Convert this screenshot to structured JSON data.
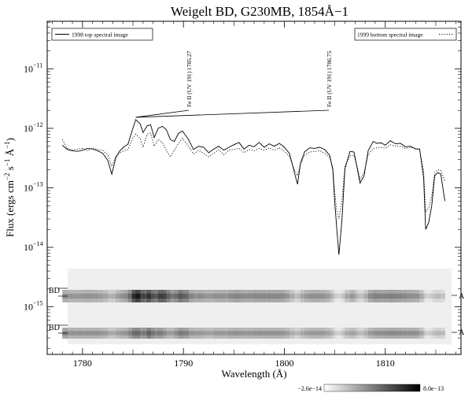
{
  "chart_data": {
    "type": "line",
    "title": "Weigelt BD, G230MB, 1854Å−1",
    "xlabel": "Wavelength (Å)",
    "ylabel_main": "Flux (ergs cm",
    "ylabel_exp1": "−2",
    "ylabel_s": " s",
    "ylabel_exp2": "−1",
    "ylabel_A": " Å",
    "ylabel_exp3": "−1",
    "ylabel_close": ")",
    "y_scale": "log",
    "xlim": [
      1776.5,
      1817.5
    ],
    "ylim_exp": [
      -15.8,
      -10.2
    ],
    "x_ticks": [
      1780,
      1790,
      1800,
      1810
    ],
    "y_ticks": [
      {
        "base": "10",
        "exp": "−11"
      },
      {
        "base": "10",
        "exp": "−12"
      },
      {
        "base": "10",
        "exp": "−13"
      },
      {
        "base": "10",
        "exp": "−14"
      },
      {
        "base": "10",
        "exp": "−15"
      }
    ],
    "y_tick_exponents": [
      -11,
      -12,
      -13,
      -14,
      -15
    ],
    "legend_left": "1998 top spectral image",
    "legend_right": "1999 bottom spectral image",
    "annotations": [
      {
        "text": "Fe II (UV 191) 1785.27",
        "x": 1785.27
      },
      {
        "text": "Fe II (UV 191) 1786.75",
        "x": 1786.75
      }
    ],
    "image_labels": {
      "left_top": "BD",
      "left_bottom": "BD",
      "right_top": "A",
      "right_bottom": "A"
    },
    "colorbar_min": "−2.6e−14",
    "colorbar_max": "8.0e−13",
    "series": [
      {
        "name": "1998 top spectral image",
        "style": "solid",
        "x": [
          1778.0,
          1778.5,
          1779.0,
          1779.5,
          1780.0,
          1780.5,
          1781.0,
          1781.5,
          1782.0,
          1782.5,
          1782.9,
          1783.3,
          1783.7,
          1784.1,
          1784.5,
          1784.9,
          1785.27,
          1785.7,
          1786.0,
          1786.4,
          1786.75,
          1787.1,
          1787.5,
          1787.9,
          1788.3,
          1788.7,
          1789.1,
          1789.5,
          1789.9,
          1790.5,
          1791.0,
          1791.5,
          1792.0,
          1792.5,
          1793.0,
          1793.5,
          1794.0,
          1794.5,
          1795.0,
          1795.5,
          1796.0,
          1796.5,
          1797.0,
          1797.5,
          1798.0,
          1798.5,
          1799.0,
          1799.5,
          1800.0,
          1800.5,
          1801.0,
          1801.3,
          1801.6,
          1802.0,
          1802.5,
          1803.0,
          1803.5,
          1804.0,
          1804.5,
          1804.8,
          1805.0,
          1805.2,
          1805.4,
          1805.7,
          1806.0,
          1806.5,
          1806.9,
          1807.2,
          1807.5,
          1807.9,
          1808.3,
          1808.8,
          1809.2,
          1809.6,
          1810.0,
          1810.5,
          1811.0,
          1811.5,
          1812.0,
          1812.5,
          1813.0,
          1813.4,
          1813.8,
          1814.0,
          1814.3,
          1814.6,
          1814.9,
          1815.2,
          1815.5,
          1815.9
        ],
        "y": [
          5.2e-13,
          4.4e-13,
          4.2e-13,
          4.1e-13,
          4.3e-13,
          4.6e-13,
          4.5e-13,
          4.2e-13,
          3.8e-13,
          2.9e-13,
          1.7e-13,
          3.2e-13,
          4.2e-13,
          4.9e-13,
          5.4e-13,
          9e-13,
          1.4e-12,
          1.2e-12,
          8.5e-13,
          1.1e-12,
          1.15e-12,
          7e-13,
          1e-12,
          1.08e-12,
          9.5e-13,
          6.5e-13,
          6e-13,
          8.2e-13,
          9e-13,
          6.5e-13,
          4.4e-13,
          5e-13,
          4.8e-13,
          3.9e-13,
          4.5e-13,
          5e-13,
          4.3e-13,
          4.8e-13,
          5.3e-13,
          5.8e-13,
          4.5e-13,
          5.2e-13,
          4.9e-13,
          5.8e-13,
          4.8e-13,
          5.5e-13,
          5e-13,
          5.6e-13,
          4.8e-13,
          3.8e-13,
          1.8e-13,
          1.15e-13,
          2.6e-13,
          4e-13,
          4.7e-13,
          4.6e-13,
          4.8e-13,
          4.4e-13,
          3.5e-13,
          2e-13,
          5.5e-14,
          2e-14,
          7.5e-15,
          2.8e-14,
          2.1e-13,
          4.1e-13,
          4e-13,
          2.2e-13,
          1.2e-13,
          1.6e-13,
          4.2e-13,
          6e-13,
          5.6e-13,
          5.7e-13,
          5.2e-13,
          6.2e-13,
          5.5e-13,
          5.6e-13,
          4.9e-13,
          5e-13,
          4.5e-13,
          4.5e-13,
          1.5e-13,
          2e-14,
          2.6e-14,
          5e-14,
          1.6e-13,
          1.8e-13,
          1.7e-13,
          6e-14
        ]
      },
      {
        "name": "1999 bottom spectral image",
        "style": "dotted",
        "x": [
          1778.0,
          1778.5,
          1779.0,
          1779.5,
          1780.0,
          1780.5,
          1781.0,
          1781.5,
          1782.0,
          1782.5,
          1782.9,
          1783.3,
          1783.7,
          1784.1,
          1784.5,
          1784.9,
          1785.27,
          1785.7,
          1786.0,
          1786.4,
          1786.75,
          1787.1,
          1787.5,
          1787.9,
          1788.3,
          1788.7,
          1789.1,
          1789.5,
          1789.9,
          1790.5,
          1791.0,
          1791.5,
          1792.0,
          1792.5,
          1793.0,
          1793.5,
          1794.0,
          1794.5,
          1795.0,
          1795.5,
          1796.0,
          1796.5,
          1797.0,
          1797.5,
          1798.0,
          1798.5,
          1799.0,
          1799.5,
          1800.0,
          1800.5,
          1801.0,
          1801.3,
          1801.6,
          1802.0,
          1802.5,
          1803.0,
          1803.5,
          1804.0,
          1804.5,
          1804.8,
          1805.0,
          1805.2,
          1805.4,
          1805.7,
          1806.0,
          1806.5,
          1806.9,
          1807.2,
          1807.5,
          1807.9,
          1808.3,
          1808.8,
          1809.2,
          1809.6,
          1810.0,
          1810.5,
          1811.0,
          1811.5,
          1812.0,
          1812.5,
          1813.0,
          1813.4,
          1813.8,
          1814.0,
          1814.3,
          1814.6,
          1814.9,
          1815.2,
          1815.5,
          1815.9
        ],
        "y": [
          6.5e-13,
          4.6e-13,
          4.3e-13,
          4.5e-13,
          4.6e-13,
          4.2e-13,
          4.7e-13,
          4.4e-13,
          4.3e-13,
          3.6e-13,
          2.3e-13,
          3.4e-13,
          3.9e-13,
          4.2e-13,
          4.4e-13,
          6.5e-13,
          8e-13,
          6.8e-13,
          4.8e-13,
          8e-13,
          8.3e-13,
          5e-13,
          6.5e-13,
          5.8e-13,
          4.3e-13,
          3.3e-13,
          4.3e-13,
          5.6e-13,
          6.8e-13,
          5e-13,
          3.7e-13,
          4.3e-13,
          3.8e-13,
          3.3e-13,
          3.8e-13,
          4.4e-13,
          3.6e-13,
          4.3e-13,
          4.4e-13,
          4.6e-13,
          3.9e-13,
          4.4e-13,
          4.2e-13,
          4.6e-13,
          4.3e-13,
          4.7e-13,
          4.3e-13,
          4.7e-13,
          4.1e-13,
          3.4e-13,
          2e-13,
          1.6e-13,
          2.5e-13,
          3.5e-13,
          4e-13,
          4.1e-13,
          4.2e-13,
          3.8e-13,
          3.2e-13,
          2.2e-13,
          8e-14,
          4e-14,
          3e-14,
          6e-14,
          2.3e-13,
          3.5e-13,
          3.5e-13,
          2.3e-13,
          1.4e-13,
          1.8e-13,
          3.6e-13,
          4.6e-13,
          4.7e-13,
          4.8e-13,
          4.6e-13,
          5.3e-13,
          5e-13,
          5e-13,
          4.6e-13,
          4.8e-13,
          4.6e-13,
          4.4e-13,
          1.9e-13,
          4e-14,
          4.5e-14,
          7e-14,
          1.8e-13,
          2e-13,
          2e-13,
          1.3e-13
        ]
      }
    ]
  }
}
